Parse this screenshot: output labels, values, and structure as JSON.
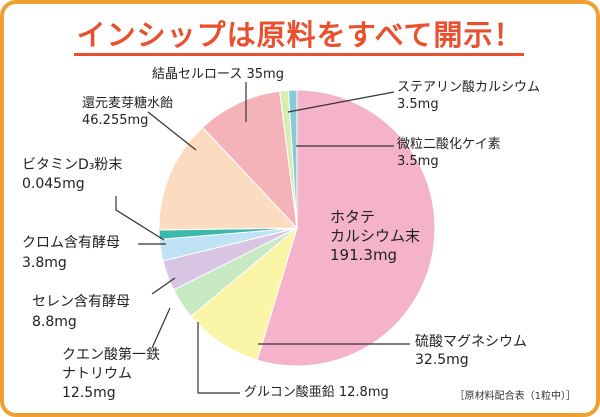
{
  "title": "インシップは原料をすべて開示！",
  "footnote": "［原材料配合表（1粒中）］",
  "chart_data": {
    "type": "pie",
    "title": "インシップは原料をすべて開示！",
    "start_angle_deg": 0,
    "direction": "clockwise",
    "slices": [
      {
        "label": "ホタテ カルシウム末",
        "label_lines": [
          "ホタテ",
          "カルシウム末",
          "191.3mg"
        ],
        "value": 191.3,
        "color": "#f4b3cb"
      },
      {
        "label": "硫酸マグネシウム",
        "label_lines": [
          "硫酸マグネシウム",
          "32.5mg"
        ],
        "value": 32.5,
        "color": "#fbf5a8"
      },
      {
        "label": "グルコン酸亜鉛",
        "label_lines": [
          "グルコン酸亜鉛 12.8mg"
        ],
        "value": 12.8,
        "color": "#c9e8c4"
      },
      {
        "label": "クエン酸第一鉄ナトリウム",
        "label_lines": [
          "クエン酸第一鉄",
          "ナトリウム",
          "12.5mg"
        ],
        "value": 12.5,
        "color": "#d7c5e3"
      },
      {
        "label": "セレン含有酵母",
        "label_lines": [
          "セレン含有酵母",
          "8.8mg"
        ],
        "value": 8.8,
        "color": "#bfe2f4"
      },
      {
        "label": "クロム含有酵母",
        "label_lines": [
          "クロム含有酵母",
          "3.8mg"
        ],
        "value": 3.8,
        "color": "#3cb9a9"
      },
      {
        "label": "ビタミンD₃粉末",
        "label_lines": [
          "ビタミンD₃粉末",
          "0.045mg"
        ],
        "value": 0.045,
        "color": "#4fc3d8"
      },
      {
        "label": "還元麦芽糖水飴",
        "label_lines": [
          "還元麦芽糖水飴",
          "46.255mg"
        ],
        "value": 46.255,
        "color": "#fcdcc0"
      },
      {
        "label": "結晶セルロース",
        "label_lines": [
          "結晶セルロース 35mg"
        ],
        "value": 35,
        "color": "#f4b3b8"
      },
      {
        "label": "ステアリン酸カルシウム",
        "label_lines": [
          "ステアリン酸カルシウム",
          "3.5mg"
        ],
        "value": 3.5,
        "color": "#d9ecb0"
      },
      {
        "label": "微粒二酸化ケイ素",
        "label_lines": [
          "微粒二酸化ケイ素",
          "3.5mg"
        ],
        "value": 3.5,
        "color": "#86ccd8"
      }
    ]
  }
}
